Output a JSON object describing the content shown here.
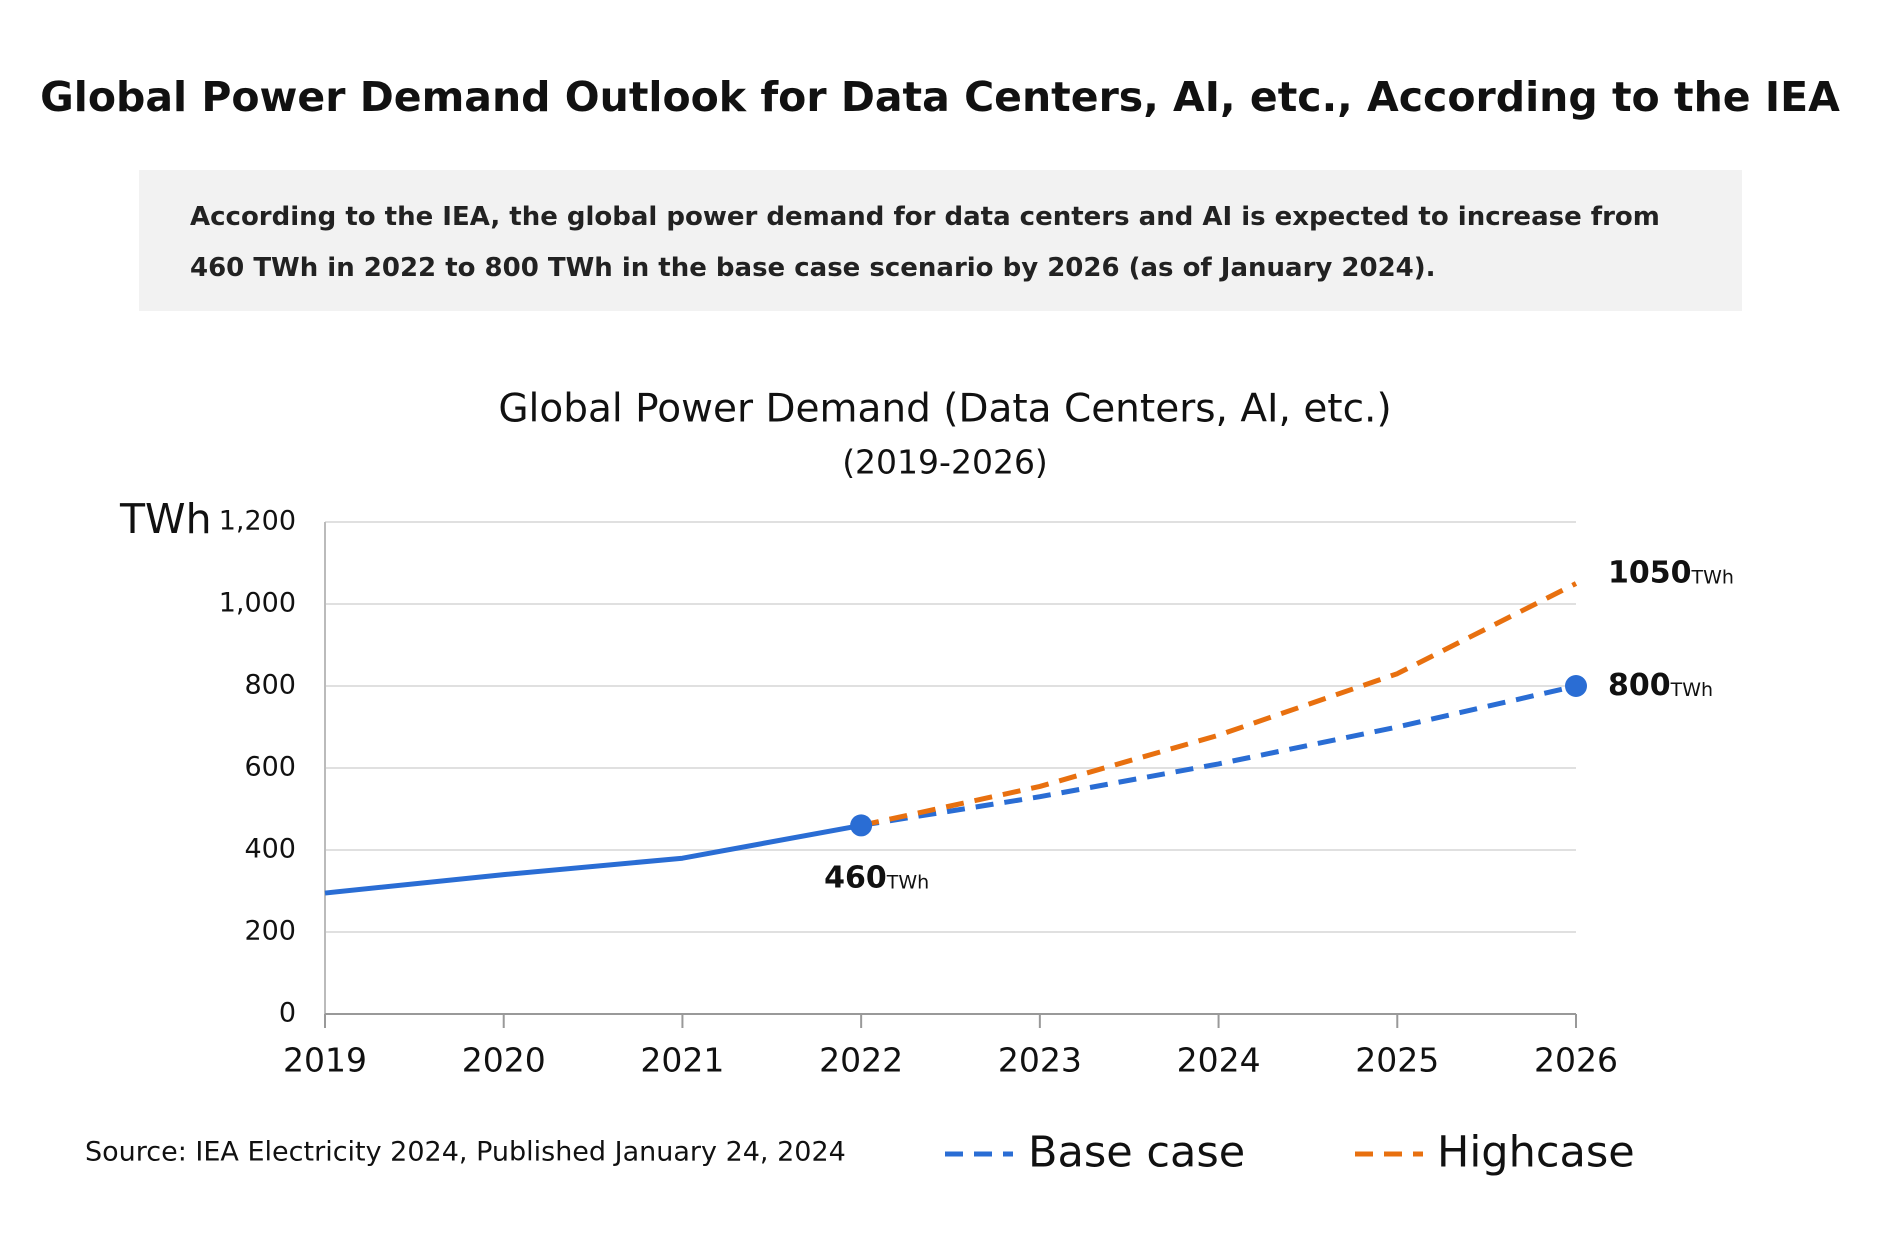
{
  "header": {
    "title": "Global Power Demand Outlook for Data Centers, AI, etc., According to the IEA"
  },
  "summary": "According to the IEA, the global power demand for data centers and AI is expected to increase from 460 TWh in 2022 to 800 TWh in the base case scenario by 2026 (as of January 2024).",
  "source": "Source: IEA Electricity 2024, Published January 24, 2024",
  "chart_data": {
    "type": "line",
    "title": "Global Power Demand (Data Centers, AI, etc.)",
    "subtitle": "(2019-2026)",
    "y_label": "TWh",
    "value_label_unit": "TWh",
    "x": [
      2019,
      2020,
      2021,
      2022,
      2023,
      2024,
      2025,
      2026
    ],
    "xlim": [
      2019,
      2026
    ],
    "xticks": [
      2019,
      2020,
      2021,
      2022,
      2023,
      2024,
      2025,
      2026
    ],
    "ylim": [
      0,
      1200
    ],
    "yticks": [
      0,
      200,
      400,
      600,
      800,
      {
        "value": 1000,
        "label": "1,000"
      },
      {
        "value": 1200,
        "label": "1,200"
      }
    ],
    "grid": true,
    "series": [
      {
        "color": "#2a6dd4",
        "dashed": false,
        "marker": true,
        "values": [
          295,
          340,
          380,
          460,
          null,
          null,
          null,
          null
        ],
        "value_labels": [
          null,
          null,
          null,
          "460",
          null,
          null,
          null,
          null
        ]
      },
      {
        "name": "Base case",
        "color": "#2a6dd4",
        "dashed": true,
        "marker": true,
        "values": [
          null,
          null,
          null,
          460,
          530,
          610,
          700,
          800
        ],
        "value_labels": [
          null,
          null,
          null,
          null,
          null,
          null,
          null,
          "800"
        ]
      },
      {
        "name": "Highcase",
        "color": "#e8700f",
        "dashed": true,
        "marker": false,
        "values": [
          null,
          null,
          null,
          460,
          555,
          680,
          830,
          1050
        ],
        "value_labels": [
          null,
          null,
          null,
          null,
          null,
          null,
          null,
          "1050"
        ]
      }
    ]
  }
}
